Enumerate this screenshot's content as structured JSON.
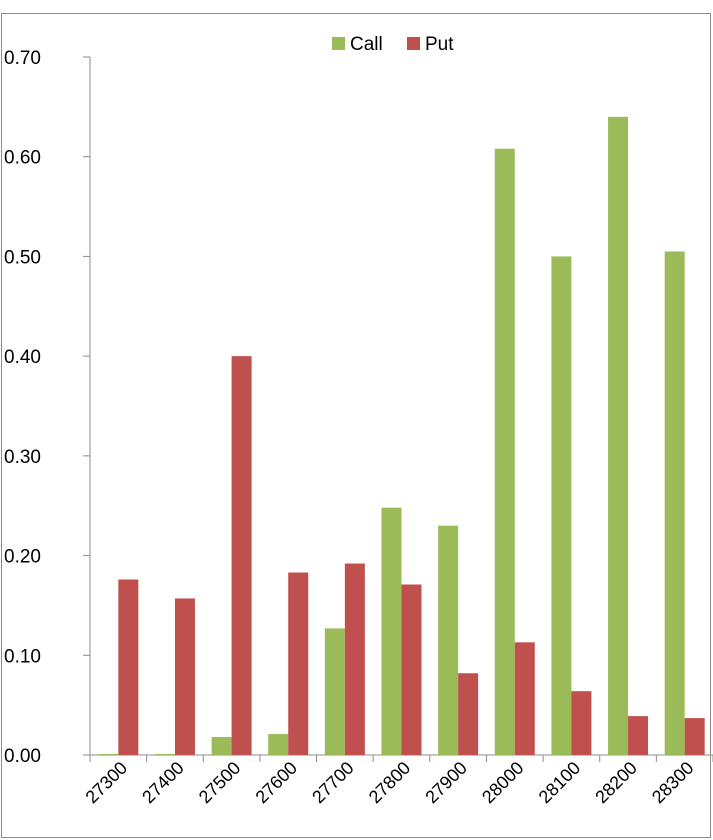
{
  "chart_data": {
    "type": "bar",
    "categories": [
      "27300",
      "27400",
      "27500",
      "27600",
      "27700",
      "27800",
      "27900",
      "28000",
      "28100",
      "28200",
      "28300"
    ],
    "series": [
      {
        "name": "Call",
        "color": "#9bbb59",
        "values": [
          0.001,
          0.001,
          0.018,
          0.021,
          0.127,
          0.248,
          0.23,
          0.608,
          0.5,
          0.64,
          0.505
        ]
      },
      {
        "name": "Put",
        "color": "#c0504d",
        "values": [
          0.176,
          0.157,
          0.4,
          0.183,
          0.192,
          0.171,
          0.082,
          0.113,
          0.064,
          0.039,
          0.037
        ]
      }
    ],
    "yticks": [
      "0.00",
      "0.10",
      "0.20",
      "0.30",
      "0.40",
      "0.50",
      "0.60",
      "0.70"
    ],
    "ylim": [
      0,
      0.7
    ],
    "grid": false,
    "legend_position": "top"
  }
}
